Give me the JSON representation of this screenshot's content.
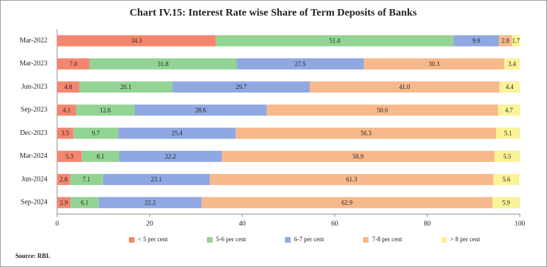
{
  "chart_data": {
    "type": "stacked-barh",
    "title": "Chart IV.15: Interest Rate wise Share of Term Deposits of Banks",
    "categories": [
      "Mar-2022",
      "Mar-2023",
      "Jun-2023",
      "Sep-2023",
      "Dec-2023",
      "Mar-2024",
      "Jun-2024",
      "Sep-2024"
    ],
    "series": [
      {
        "name": "< 5 per cent",
        "color": "#f4866f",
        "values": [
          34.3,
          7.0,
          4.8,
          4.1,
          3.5,
          5.3,
          2.8,
          2.9
        ],
        "value_labels": [
          "34.3",
          "7.0",
          "4.8",
          "4.1",
          "3.5",
          "5.3",
          "2.8",
          "2.9"
        ]
      },
      {
        "name": "5-6 per cent",
        "color": "#93d393",
        "values": [
          51.4,
          31.8,
          20.1,
          12.6,
          9.7,
          8.1,
          7.1,
          6.1
        ],
        "value_labels": [
          "51.4",
          "31.8",
          "20.1",
          "12.6",
          "9.7",
          "8.1",
          "7.1",
          "6.1"
        ]
      },
      {
        "name": "6-7 per cent",
        "color": "#8fa8e2",
        "values": [
          9.8,
          27.5,
          29.7,
          28.6,
          25.4,
          22.2,
          23.1,
          22.2
        ],
        "value_labels": [
          "9.8",
          "27.5",
          "29.7",
          "28.6",
          "25.4",
          "22.2",
          "23.1",
          "22.2"
        ]
      },
      {
        "name": "7-8 per cent",
        "color": "#f7b98b",
        "values": [
          2.8,
          30.3,
          41.0,
          50.0,
          56.3,
          58.9,
          61.3,
          62.9
        ],
        "value_labels": [
          "2.8",
          "30.3",
          "41.0",
          "50.0",
          "56.3",
          "58.9",
          "61.3",
          "62.9"
        ]
      },
      {
        "name": "> 8 per cent",
        "color": "#faf397",
        "values": [
          1.7,
          3.4,
          4.4,
          4.7,
          5.1,
          5.5,
          5.6,
          5.9
        ],
        "value_labels": [
          "1.7",
          "3.4",
          "4.4",
          "4.7",
          "5.1",
          "5.5",
          "5.6",
          "5.9"
        ]
      }
    ],
    "xlim": [
      0,
      100
    ],
    "xticks": [
      0,
      20,
      40,
      60,
      80,
      100
    ],
    "source": "Source: RBI."
  }
}
